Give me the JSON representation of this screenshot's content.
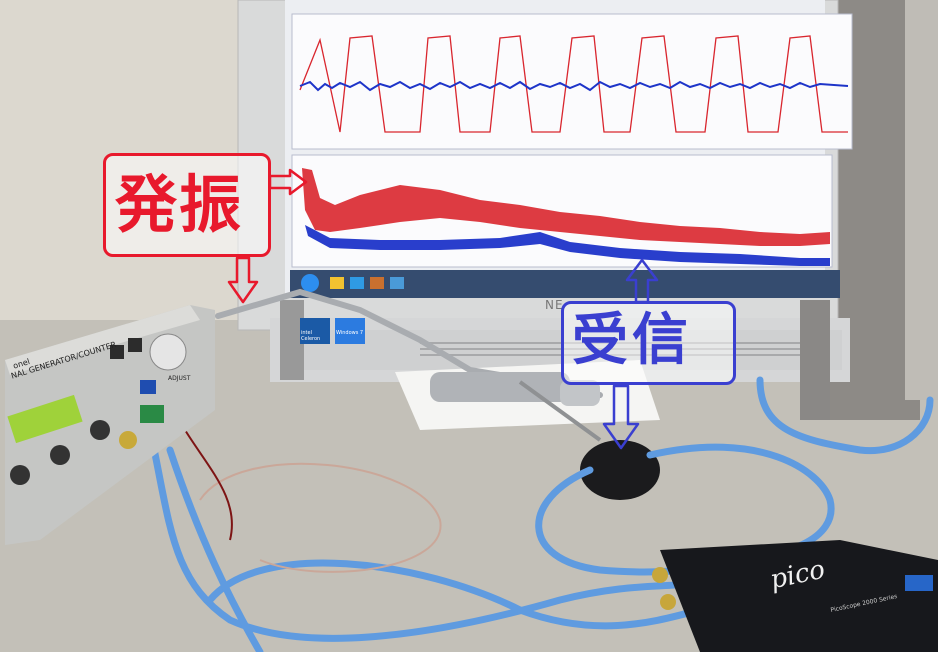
{
  "annotations": {
    "oscillation": {
      "label": "発振",
      "color": "#e8192c"
    },
    "reception": {
      "label": "受信",
      "color": "#3a3fd0"
    }
  },
  "monitor": {
    "brand": "NE"
  },
  "scope": {
    "brand": "pico",
    "model": "PicoScope 2000 Series"
  },
  "generator": {
    "title": "NAL GENERATOR/COUNTER",
    "brand": "onel",
    "knob_label": "ADJUST"
  },
  "stickers": {
    "intel": "intel Celeron",
    "windows": "Windows 7"
  },
  "colors": {
    "red_trace": "#d9262e",
    "blue_trace": "#1d34c9",
    "lcd": "#9fd23a",
    "cable": "#5f9be0"
  }
}
